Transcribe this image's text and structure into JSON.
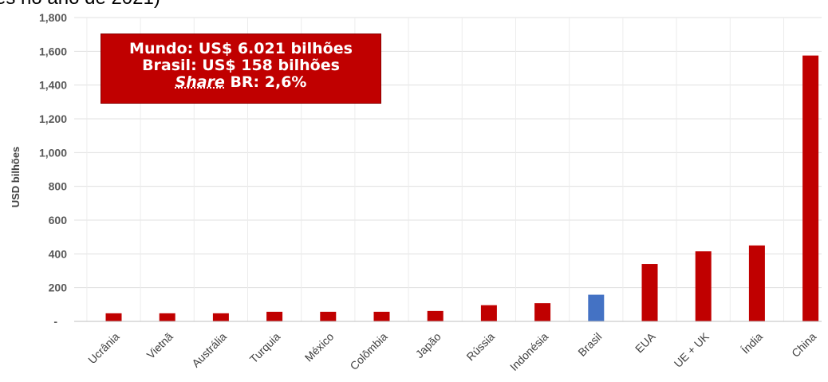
{
  "caption": "es no ano de 2021)",
  "annotation": {
    "line1": "Mundo: US$ 6.021 bilhões",
    "line2": "Brasil: US$ 158 bilhões",
    "line3_italic": "Share",
    "line3_rest": " BR: 2,6%"
  },
  "chart_data": {
    "type": "bar",
    "title": "",
    "xlabel": "",
    "ylabel": "USD bilhões",
    "ylim": [
      0,
      1800
    ],
    "yticks": [
      0,
      200,
      400,
      600,
      800,
      1000,
      1200,
      1400,
      1600,
      1800
    ],
    "ytick_labels": [
      "-",
      "200",
      "400",
      "600",
      "800",
      "1,000",
      "1,200",
      "1,400",
      "1,600",
      "1,800"
    ],
    "grid": true,
    "categories": [
      "Ucrânia",
      "Vietnã",
      "Austrália",
      "Turquia",
      "México",
      "Colômbia",
      "Japão",
      "Rússia",
      "Indonésia",
      "Brasil",
      "EUA",
      "UE + UK",
      "Índia",
      "China"
    ],
    "values": [
      48,
      48,
      48,
      57,
      57,
      57,
      62,
      96,
      108,
      158,
      340,
      415,
      450,
      1575
    ],
    "colors": {
      "default": "#c00000",
      "highlight": "#4472c4",
      "highlight_category": "Brasil"
    }
  }
}
